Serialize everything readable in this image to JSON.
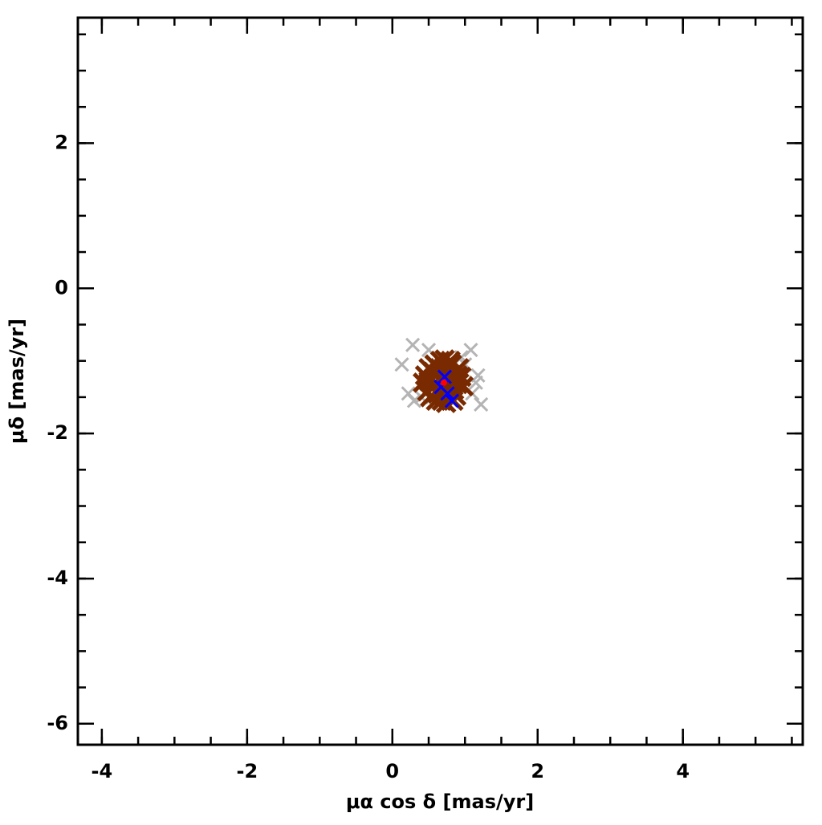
{
  "chart_data": {
    "type": "scatter",
    "xlabel": "μα cos δ [mas/yr]",
    "ylabel": "μδ [mas/yr]",
    "xlim": [
      -4.33,
      5.65
    ],
    "ylim": [
      -6.29,
      3.73
    ],
    "xticks": [
      -4,
      -2,
      0,
      2,
      4
    ],
    "yticks": [
      -6,
      -4,
      -2,
      0,
      2
    ],
    "series": [
      {
        "color": "#b4b4b4",
        "marker": "x",
        "x": [
          0.28,
          0.13,
          0.22,
          0.3,
          1.08,
          1.18,
          1.15,
          1.22,
          0.5,
          1.0,
          0.95,
          0.4,
          1.1
        ],
        "values": [
          -0.78,
          -1.05,
          -1.45,
          -1.55,
          -0.85,
          -1.2,
          -1.3,
          -1.6,
          -0.85,
          -1.05,
          -0.95,
          -1.5,
          -1.45
        ]
      },
      {
        "color": "#7a2a00",
        "marker": "x",
        "x": [
          0.7,
          0.6,
          0.8,
          0.55,
          0.85,
          0.65,
          0.75,
          0.5,
          0.9,
          0.62,
          0.78,
          0.45,
          0.95,
          0.58,
          0.82,
          0.68,
          0.72,
          0.48,
          0.88,
          0.52,
          0.92,
          0.6,
          0.8,
          0.7,
          0.66,
          0.74,
          0.42,
          0.98,
          0.56,
          0.84,
          0.64,
          0.76,
          0.7,
          0.5,
          0.9,
          0.6,
          0.8,
          0.7
        ],
        "values": [
          -1.3,
          -1.2,
          -1.25,
          -1.35,
          -1.4,
          -1.1,
          -1.15,
          -1.28,
          -1.32,
          -1.45,
          -1.5,
          -1.2,
          -1.22,
          -1.05,
          -1.05,
          -1.55,
          -0.98,
          -1.42,
          -1.48,
          -1.5,
          -1.1,
          -1.3,
          -1.35,
          -1.4,
          -1.0,
          -1.58,
          -1.3,
          -1.35,
          -1.15,
          -1.55,
          -1.25,
          -1.2,
          -1.45,
          -1.1,
          -1.2,
          -1.55,
          -1.0,
          -1.25
        ]
      },
      {
        "color": "#0000ff",
        "marker": "x",
        "x": [
          0.72,
          0.67,
          0.76,
          0.82
        ],
        "values": [
          -1.22,
          -1.36,
          -1.45,
          -1.55
        ]
      },
      {
        "color": "#ff0000",
        "marker": "dot",
        "x": [
          0.71
        ],
        "values": [
          -1.3
        ]
      }
    ]
  }
}
